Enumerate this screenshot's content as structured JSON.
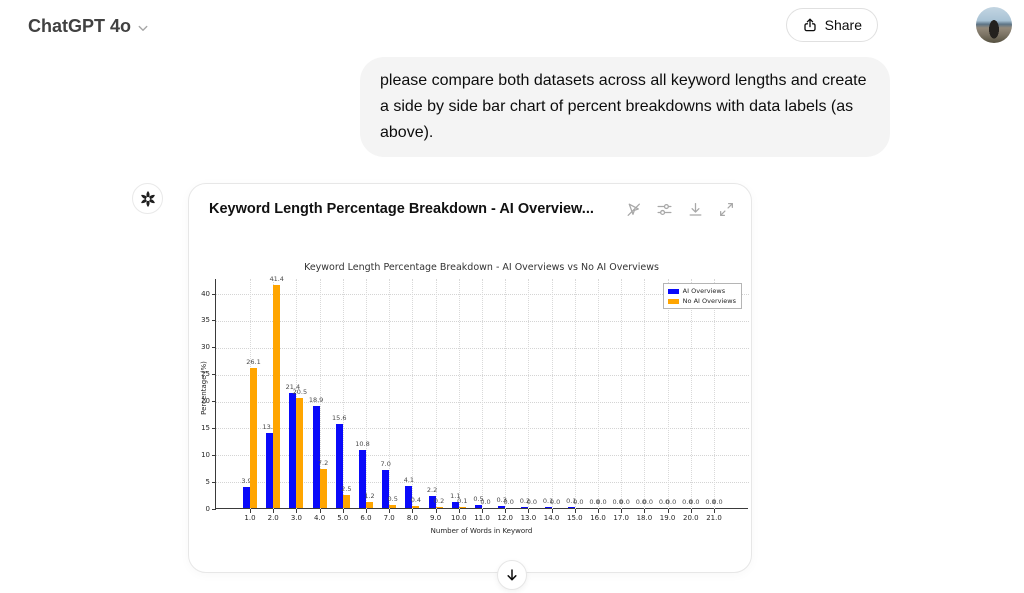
{
  "header": {
    "model_label": "ChatGPT 4o",
    "share_label": "Share"
  },
  "user_message": {
    "text": "please compare both datasets across all keyword lengths and create a side by side bar chart of percent breakdowns with data labels (as above)."
  },
  "chart_card": {
    "title": "Keyword Length Percentage Breakdown - AI Overview...",
    "toolbar_icons": [
      "cursor-off",
      "sliders",
      "download",
      "expand"
    ]
  },
  "chart_data": {
    "type": "bar",
    "title": "Keyword Length Percentage Breakdown - AI Overviews vs No AI Overviews",
    "xlabel": "Number of Words in Keyword",
    "ylabel": "Percentage (%)",
    "categories": [
      "1.0",
      "2.0",
      "3.0",
      "4.0",
      "5.0",
      "6.0",
      "7.0",
      "8.0",
      "9.0",
      "10.0",
      "11.0",
      "12.0",
      "13.0",
      "14.0",
      "15.0",
      "16.0",
      "17.0",
      "18.0",
      "19.0",
      "20.0",
      "21.0"
    ],
    "series": [
      {
        "name": "AI Overviews",
        "color": "#0a0afa",
        "values": [
          3.9,
          13.9,
          21.4,
          18.9,
          15.6,
          10.8,
          7.0,
          4.1,
          2.2,
          1.1,
          0.5,
          0.3,
          0.2,
          0.1,
          0.1,
          0.0,
          0.0,
          0.0,
          0.0,
          0.0,
          0.0
        ]
      },
      {
        "name": "No AI Overviews",
        "color": "#ffa500",
        "values": [
          26.1,
          41.4,
          20.5,
          7.2,
          2.5,
          1.2,
          0.5,
          0.4,
          0.2,
          0.1,
          0.0,
          0.0,
          0.0,
          0.0,
          0.0,
          0.0,
          0.0,
          0.0,
          0.0,
          0.0,
          0.0
        ]
      }
    ],
    "ylim": [
      0,
      42.8
    ],
    "yticks": [
      0,
      5,
      10,
      15,
      20,
      25,
      30,
      35,
      40
    ],
    "grid": true,
    "legend_position": "upper right",
    "data_labels": true
  }
}
